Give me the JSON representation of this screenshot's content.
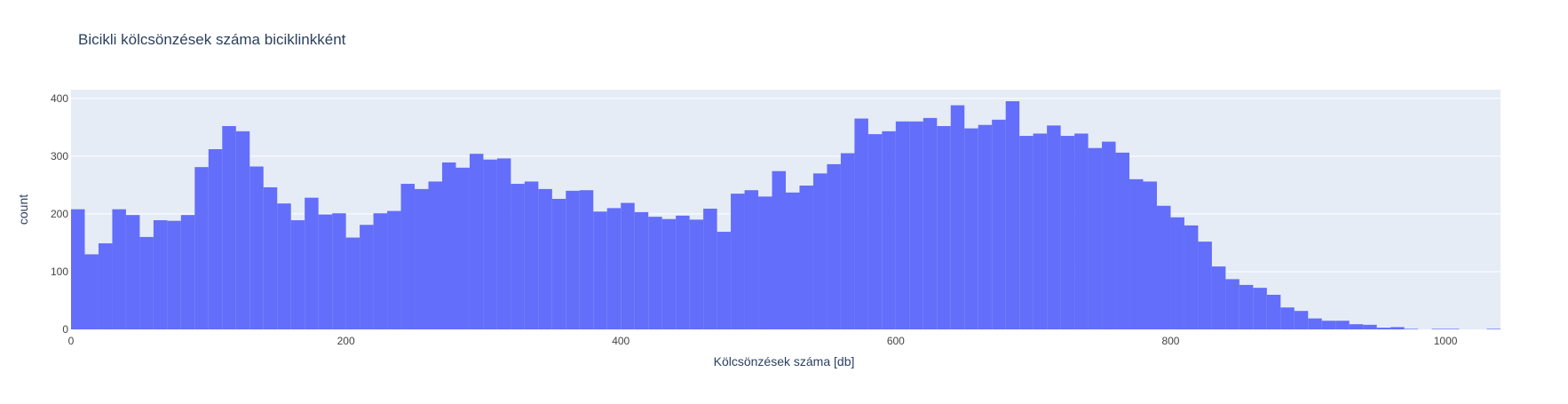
{
  "chart_data": {
    "type": "bar",
    "title": "Bicikli kölcsönzések száma biciklinkként",
    "xlabel": "Kölcsönzések száma [db]",
    "ylabel": "count",
    "bin_width": 10,
    "xlim": [
      0,
      1040
    ],
    "ylim": [
      0,
      415
    ],
    "xticks": [
      0,
      200,
      400,
      600,
      800,
      1000
    ],
    "yticks": [
      0,
      100,
      200,
      300,
      400
    ],
    "grid": true,
    "legend": "none",
    "bin_starts": [
      0,
      10,
      20,
      30,
      40,
      50,
      60,
      70,
      80,
      90,
      100,
      110,
      120,
      130,
      140,
      150,
      160,
      170,
      180,
      190,
      200,
      210,
      220,
      230,
      240,
      250,
      260,
      270,
      280,
      290,
      300,
      310,
      320,
      330,
      340,
      350,
      360,
      370,
      380,
      390,
      400,
      410,
      420,
      430,
      440,
      450,
      460,
      470,
      480,
      490,
      500,
      510,
      520,
      530,
      540,
      550,
      560,
      570,
      580,
      590,
      600,
      610,
      620,
      630,
      640,
      650,
      660,
      670,
      680,
      690,
      700,
      710,
      720,
      730,
      740,
      750,
      760,
      770,
      780,
      790,
      800,
      810,
      820,
      830,
      840,
      850,
      860,
      870,
      880,
      890,
      900,
      910,
      920,
      930,
      940,
      950,
      960,
      970,
      980,
      990,
      1000,
      1010,
      1020,
      1030
    ],
    "values": [
      208,
      130,
      149,
      208,
      198,
      160,
      189,
      188,
      198,
      281,
      312,
      352,
      343,
      282,
      246,
      218,
      189,
      228,
      199,
      201,
      159,
      181,
      201,
      205,
      252,
      243,
      256,
      289,
      280,
      304,
      294,
      296,
      252,
      256,
      243,
      226,
      240,
      241,
      204,
      210,
      219,
      203,
      195,
      191,
      197,
      190,
      209,
      169,
      235,
      241,
      230,
      274,
      237,
      249,
      270,
      286,
      305,
      365,
      338,
      343,
      360,
      360,
      366,
      352,
      388,
      348,
      354,
      363,
      395,
      335,
      339,
      353,
      335,
      339,
      314,
      325,
      306,
      260,
      256,
      214,
      194,
      180,
      152,
      109,
      87,
      77,
      72,
      60,
      38,
      32,
      19,
      15,
      15,
      9,
      8,
      3,
      4,
      1,
      0,
      1,
      1,
      0,
      0,
      1
    ],
    "colors": {
      "bar": "#636efa",
      "plot_bg": "#e5ecf6",
      "grid": "#ffffff",
      "text": "#2a3f5f",
      "tick_text": "#444444"
    }
  }
}
